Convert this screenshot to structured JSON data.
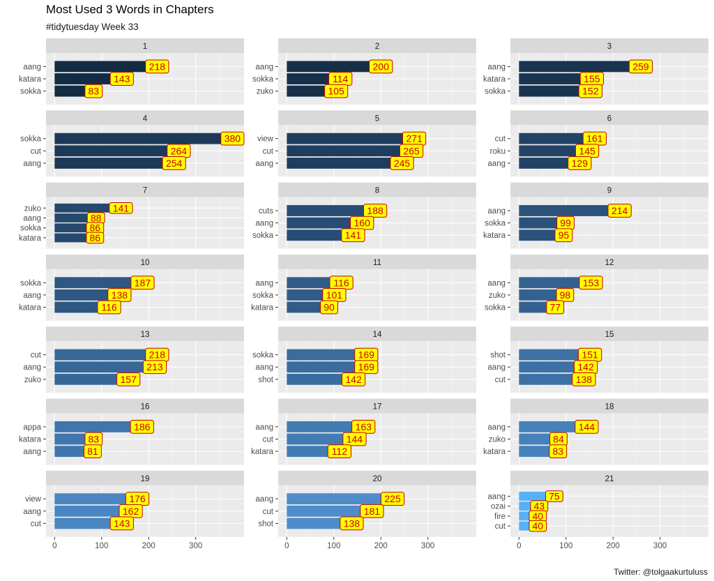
{
  "chart_data": {
    "type": "bar",
    "orientation": "horizontal",
    "title": "Most Used 3 Words in Chapters",
    "subtitle": "#tidytuesday Week 33",
    "caption": "Twitter: @tolgaakurtuluss",
    "xlim": [
      0,
      390
    ],
    "x_ticks": [
      0,
      100,
      200,
      300
    ],
    "grid": true,
    "facets": [
      {
        "label": "1",
        "words": [
          "aang",
          "katara",
          "sokka"
        ],
        "values": [
          218,
          143,
          83
        ],
        "fill": "#132b43"
      },
      {
        "label": "2",
        "words": [
          "aang",
          "sokka",
          "zuko"
        ],
        "values": [
          200,
          114,
          105
        ],
        "fill": "#16304a"
      },
      {
        "label": "3",
        "words": [
          "aang",
          "katara",
          "sokka"
        ],
        "values": [
          259,
          155,
          152
        ],
        "fill": "#193451"
      },
      {
        "label": "4",
        "words": [
          "sokka",
          "cut",
          "aang"
        ],
        "values": [
          380,
          264,
          254
        ],
        "fill": "#1c3958"
      },
      {
        "label": "5",
        "words": [
          "view",
          "cut",
          "aang"
        ],
        "values": [
          271,
          265,
          245
        ],
        "fill": "#1f3e5f"
      },
      {
        "label": "6",
        "words": [
          "cut",
          "roku",
          "aang"
        ],
        "values": [
          161,
          145,
          129
        ],
        "fill": "#224366"
      },
      {
        "label": "7",
        "words": [
          "zuko",
          "aang",
          "sokka",
          "katara"
        ],
        "values": [
          141,
          88,
          86,
          86
        ],
        "fill": "#25486d"
      },
      {
        "label": "8",
        "words": [
          "cuts",
          "aang",
          "sokka"
        ],
        "values": [
          188,
          160,
          141
        ],
        "fill": "#284d74"
      },
      {
        "label": "9",
        "words": [
          "aang",
          "sokka",
          "katara"
        ],
        "values": [
          214,
          99,
          95
        ],
        "fill": "#2b527b"
      },
      {
        "label": "10",
        "words": [
          "sokka",
          "aang",
          "katara"
        ],
        "values": [
          187,
          138,
          116
        ],
        "fill": "#2e5782"
      },
      {
        "label": "11",
        "words": [
          "aang",
          "sokka",
          "katara"
        ],
        "values": [
          116,
          101,
          90
        ],
        "fill": "#315c89"
      },
      {
        "label": "12",
        "words": [
          "aang",
          "zuko",
          "sokka"
        ],
        "values": [
          153,
          98,
          77
        ],
        "fill": "#346190"
      },
      {
        "label": "13",
        "words": [
          "cut",
          "aang",
          "zuko"
        ],
        "values": [
          218,
          213,
          157
        ],
        "fill": "#376797"
      },
      {
        "label": "14",
        "words": [
          "sokka",
          "aang",
          "shot"
        ],
        "values": [
          169,
          169,
          142
        ],
        "fill": "#3a6c9e"
      },
      {
        "label": "15",
        "words": [
          "shot",
          "aang",
          "cut"
        ],
        "values": [
          151,
          142,
          138
        ],
        "fill": "#3d71a5"
      },
      {
        "label": "16",
        "words": [
          "appa",
          "katara",
          "aang"
        ],
        "values": [
          186,
          83,
          81
        ],
        "fill": "#4076ac"
      },
      {
        "label": "17",
        "words": [
          "aang",
          "cut",
          "katara"
        ],
        "values": [
          163,
          144,
          112
        ],
        "fill": "#437bb3"
      },
      {
        "label": "18",
        "words": [
          "aang",
          "zuko",
          "katara"
        ],
        "values": [
          144,
          84,
          83
        ],
        "fill": "#4781bb"
      },
      {
        "label": "19",
        "words": [
          "view",
          "aang",
          "cut"
        ],
        "values": [
          176,
          162,
          143
        ],
        "fill": "#4a86c2"
      },
      {
        "label": "20",
        "words": [
          "aang",
          "cut",
          "shot"
        ],
        "values": [
          225,
          181,
          138
        ],
        "fill": "#4e8cca"
      },
      {
        "label": "21",
        "words": [
          "aang",
          "ozai",
          "fire",
          "cut"
        ],
        "values": [
          75,
          43,
          40,
          40
        ],
        "fill": "#56b1f7"
      }
    ],
    "label_box": {
      "fill": "#ffff00",
      "border": "#cc0000",
      "text": "#cc0000"
    },
    "panel_background": "#ebebeb",
    "strip_background": "#d9d9d9"
  }
}
